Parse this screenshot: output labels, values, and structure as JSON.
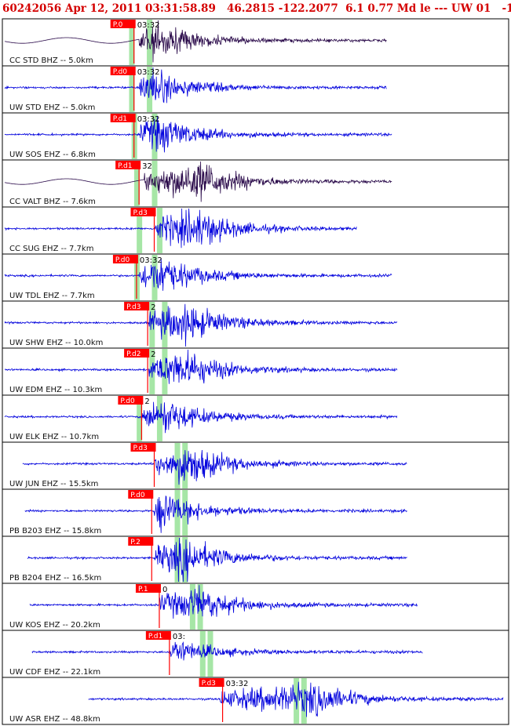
{
  "header": {
    "text": "60242056 Apr 12, 2011 03:31:58.89   46.2815 -122.2077  6.1 0.77 Md le --- UW 01   -1"
  },
  "colors": {
    "header_text": "#d40000",
    "trace_broadband": "#2a0a4a",
    "trace_short_period": "#0000dd",
    "pick_box": "#ff0000",
    "pick_line": "#ff0000",
    "window_band": "#a6e6a6",
    "panel_border": "#000000"
  },
  "chart_data": {
    "type": "seismogram",
    "title": "",
    "xlabel": "",
    "ylabel": "",
    "time_tick_label": "03:32",
    "traces": [
      {
        "label": "CC STD BHZ -- 5.0km",
        "color": "broadband",
        "pick": "P.0",
        "time_text": "03:32",
        "onset": 0.27,
        "end": 0.76,
        "amp": 1.0,
        "p_time": 0.26,
        "green": [
          0.255,
          0.29
        ],
        "peak": 0.3
      },
      {
        "label": "UW STD EHZ -- 5.0km",
        "color": "short_period",
        "pick": "P.d0",
        "time_text": "03:32",
        "onset": 0.27,
        "end": 0.76,
        "amp": 1.0,
        "p_time": 0.26,
        "green": [
          0.255,
          0.29
        ],
        "peak": 0.29
      },
      {
        "label": "UW SOS EHZ -- 6.8km",
        "color": "short_period",
        "pick": "P.d1",
        "time_text": "03:32",
        "onset": 0.27,
        "end": 0.77,
        "amp": 0.9,
        "p_time": 0.26,
        "green": [
          0.26,
          0.3
        ],
        "peak": 0.31
      },
      {
        "label": "CC VALT BHZ -- 7.6km",
        "color": "broadband",
        "pick": "P.d1",
        "time_text": "32",
        "onset": 0.28,
        "end": 0.77,
        "amp": 1.0,
        "p_time": 0.27,
        "green": [
          0.265,
          0.3
        ],
        "peak": 0.39
      },
      {
        "label": "CC SUG EHZ -- 7.7km",
        "color": "short_period",
        "pick": "P.d3",
        "time_text": "",
        "onset": 0.3,
        "end": 0.7,
        "amp": 1.0,
        "p_time": 0.3,
        "green": [
          0.27,
          0.31
        ],
        "peak": 0.38
      },
      {
        "label": "UW TDL EHZ -- 7.7km",
        "color": "short_period",
        "pick": "P.d0",
        "time_text": "03:32",
        "onset": 0.27,
        "end": 0.77,
        "amp": 1.0,
        "p_time": 0.265,
        "green": [
          0.265,
          0.3
        ],
        "peak": 0.31
      },
      {
        "label": "UW SHW EHZ -- 10.0km",
        "color": "short_period",
        "pick": "P.d3",
        "time_text": "2",
        "onset": 0.29,
        "end": 0.78,
        "amp": 1.0,
        "p_time": 0.287,
        "green": [
          0.295,
          0.32
        ],
        "peak": 0.36
      },
      {
        "label": "UW EDM EHZ -- 10.3km",
        "color": "short_period",
        "pick": "P.d2",
        "time_text": "2",
        "onset": 0.29,
        "end": 0.78,
        "amp": 1.0,
        "p_time": 0.287,
        "green": [
          0.295,
          0.32
        ],
        "peak": 0.36
      },
      {
        "label": "UW ELK EHZ -- 10.7km",
        "color": "short_period",
        "pick": "P.d0",
        "time_text": "2",
        "onset": 0.275,
        "end": 0.78,
        "amp": 0.9,
        "p_time": 0.275,
        "green": [
          0.27,
          0.31
        ],
        "peak": 0.32
      },
      {
        "label": "UW JUN EHZ -- 15.5km",
        "color": "short_period",
        "pick": "P.d3",
        "time_text": "",
        "onset": 0.3,
        "end": 0.8,
        "amp": 1.0,
        "p_time": 0.3,
        "green": [
          0.345,
          0.36
        ],
        "peak": 0.37
      },
      {
        "label": "PB B203 EHZ -- 15.8km",
        "color": "short_period",
        "pick": "P.d0",
        "time_text": "",
        "onset": 0.3,
        "end": 0.8,
        "amp": 1.0,
        "p_time": 0.295,
        "green": [
          0.345,
          0.36
        ],
        "peak": 0.31
      },
      {
        "label": "PB B204 EHZ -- 16.5km",
        "color": "short_period",
        "pick": "P.2",
        "time_text": "",
        "onset": 0.3,
        "end": 0.8,
        "amp": 1.0,
        "p_time": 0.295,
        "green": [
          0.345,
          0.36
        ],
        "peak": 0.36
      },
      {
        "label": "UW KOS EHZ -- 20.2km",
        "color": "short_period",
        "pick": "P.1",
        "time_text": "0",
        "onset": 0.31,
        "end": 0.82,
        "amp": 0.85,
        "p_time": 0.31,
        "green": [
          0.375,
          0.39
        ],
        "peak": 0.39
      },
      {
        "label": "UW CDF EHZ -- 22.1km",
        "color": "short_period",
        "pick": "P.d1",
        "time_text": "03:",
        "onset": 0.33,
        "end": 0.83,
        "amp": 0.6,
        "p_time": 0.33,
        "green": [
          0.395,
          0.41
        ],
        "peak": 0.34
      },
      {
        "label": "UW ASR EHZ -- 48.8km",
        "color": "short_period",
        "pick": "P.d3",
        "time_text": "03:32",
        "onset": 0.43,
        "end": 0.99,
        "amp": 0.8,
        "p_time": 0.435,
        "green": [
          0.58,
          0.595
        ],
        "peak": 0.62
      }
    ]
  }
}
